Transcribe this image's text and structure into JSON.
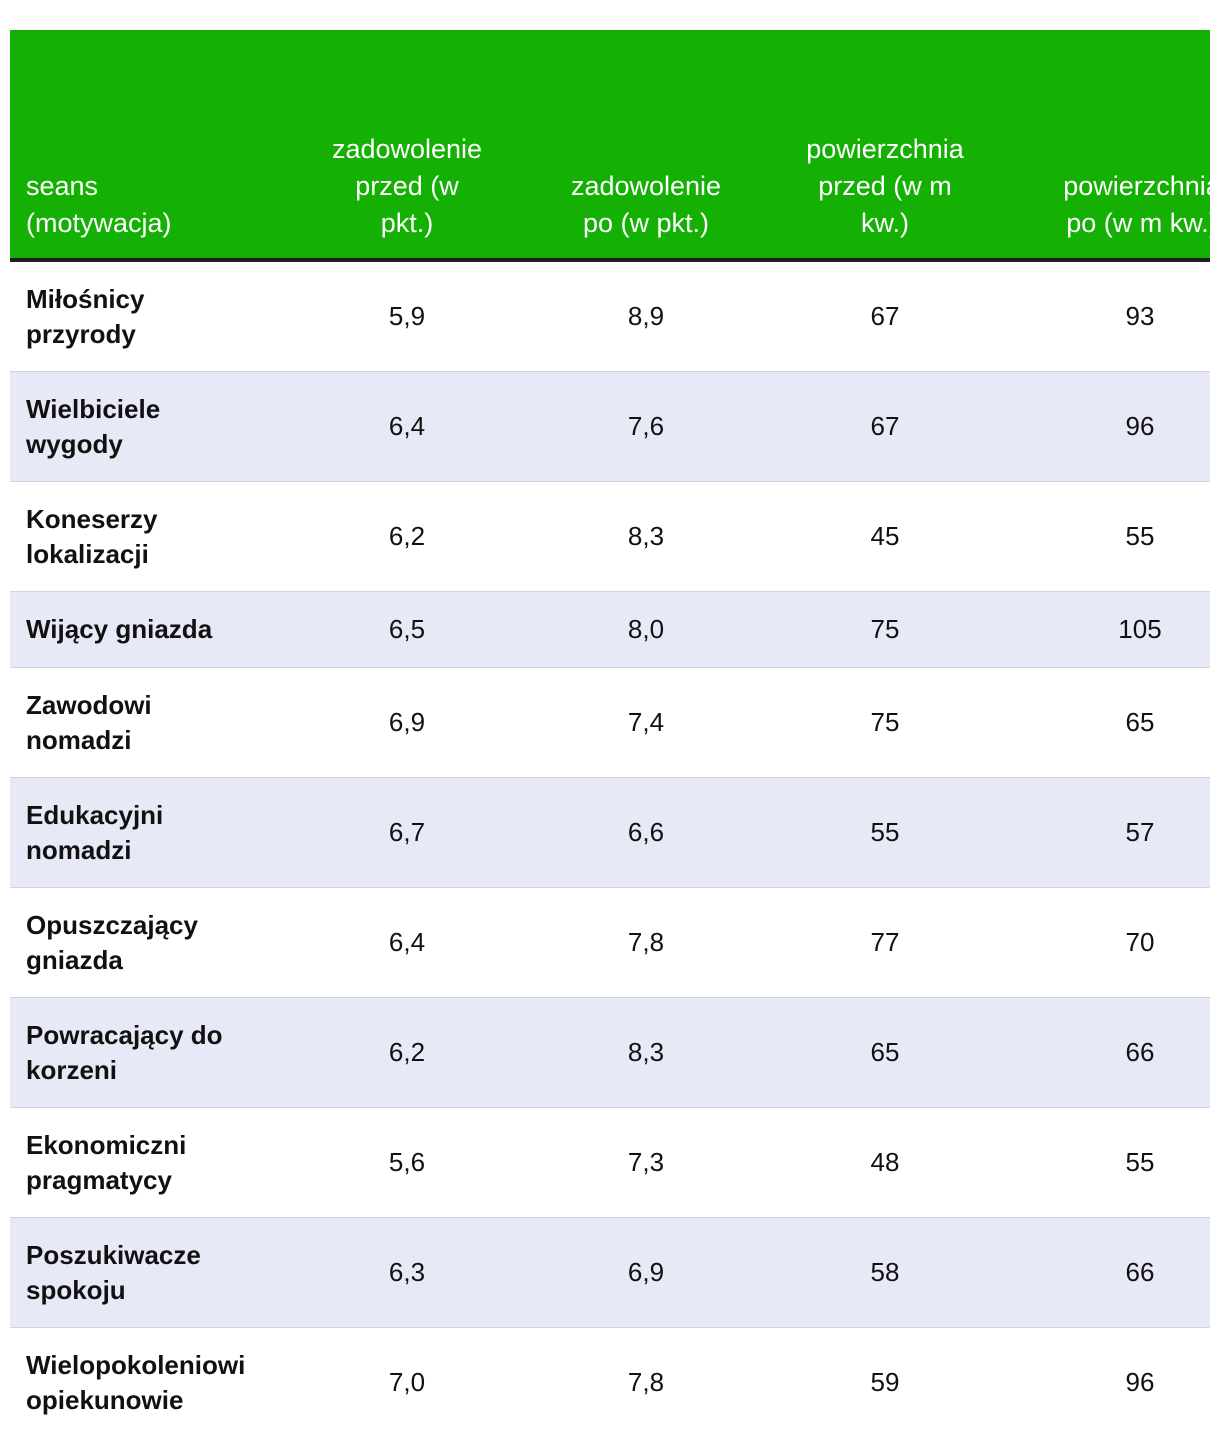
{
  "table": {
    "headers": [
      "seans\n(motywacja)",
      "zadowolenie\nprzed (w\npkt.)",
      "zadowolenie\npo (w pkt.)",
      "powierzchnia\nprzed (w m\nkw.)",
      "powierzchnia\npo (w m kw.)"
    ],
    "rows": [
      {
        "name": "Miłośnicy\nprzyrody",
        "sat_before": "5,9",
        "sat_after": "8,9",
        "area_before": "67",
        "area_after": "93"
      },
      {
        "name": "Wielbiciele\nwygody",
        "sat_before": "6,4",
        "sat_after": "7,6",
        "area_before": "67",
        "area_after": "96"
      },
      {
        "name": "Koneserzy\nlokalizacji",
        "sat_before": "6,2",
        "sat_after": "8,3",
        "area_before": "45",
        "area_after": "55"
      },
      {
        "name": "Wijący gniazda",
        "sat_before": "6,5",
        "sat_after": "8,0",
        "area_before": "75",
        "area_after": "105"
      },
      {
        "name": "Zawodowi\nnomadzi",
        "sat_before": "6,9",
        "sat_after": "7,4",
        "area_before": "75",
        "area_after": "65"
      },
      {
        "name": "Edukacyjni\nnomadzi",
        "sat_before": "6,7",
        "sat_after": "6,6",
        "area_before": "55",
        "area_after": "57"
      },
      {
        "name": "Opuszczający\ngniazda",
        "sat_before": "6,4",
        "sat_after": "7,8",
        "area_before": "77",
        "area_after": "70"
      },
      {
        "name": "Powracający do\nkorzeni",
        "sat_before": "6,2",
        "sat_after": "8,3",
        "area_before": "65",
        "area_after": "66"
      },
      {
        "name": "Ekonomiczni\npragmatycy",
        "sat_before": "5,6",
        "sat_after": "7,3",
        "area_before": "48",
        "area_after": "55"
      },
      {
        "name": "Poszukiwacze\nspokoju",
        "sat_before": "6,3",
        "sat_after": "6,9",
        "area_before": "58",
        "area_after": "66"
      },
      {
        "name": "Wielopokoleniowi\nopiekunowie",
        "sat_before": "7,0",
        "sat_after": "7,8",
        "area_before": "59",
        "area_after": "96"
      }
    ]
  },
  "colors": {
    "header_bg": "#15b004",
    "header_text": "#ffffff",
    "header_rule": "#1e1e1e",
    "stripe_bg": "#e8e9f7",
    "row_bg": "#ffffff",
    "row_divider": "#cfd1e6"
  }
}
